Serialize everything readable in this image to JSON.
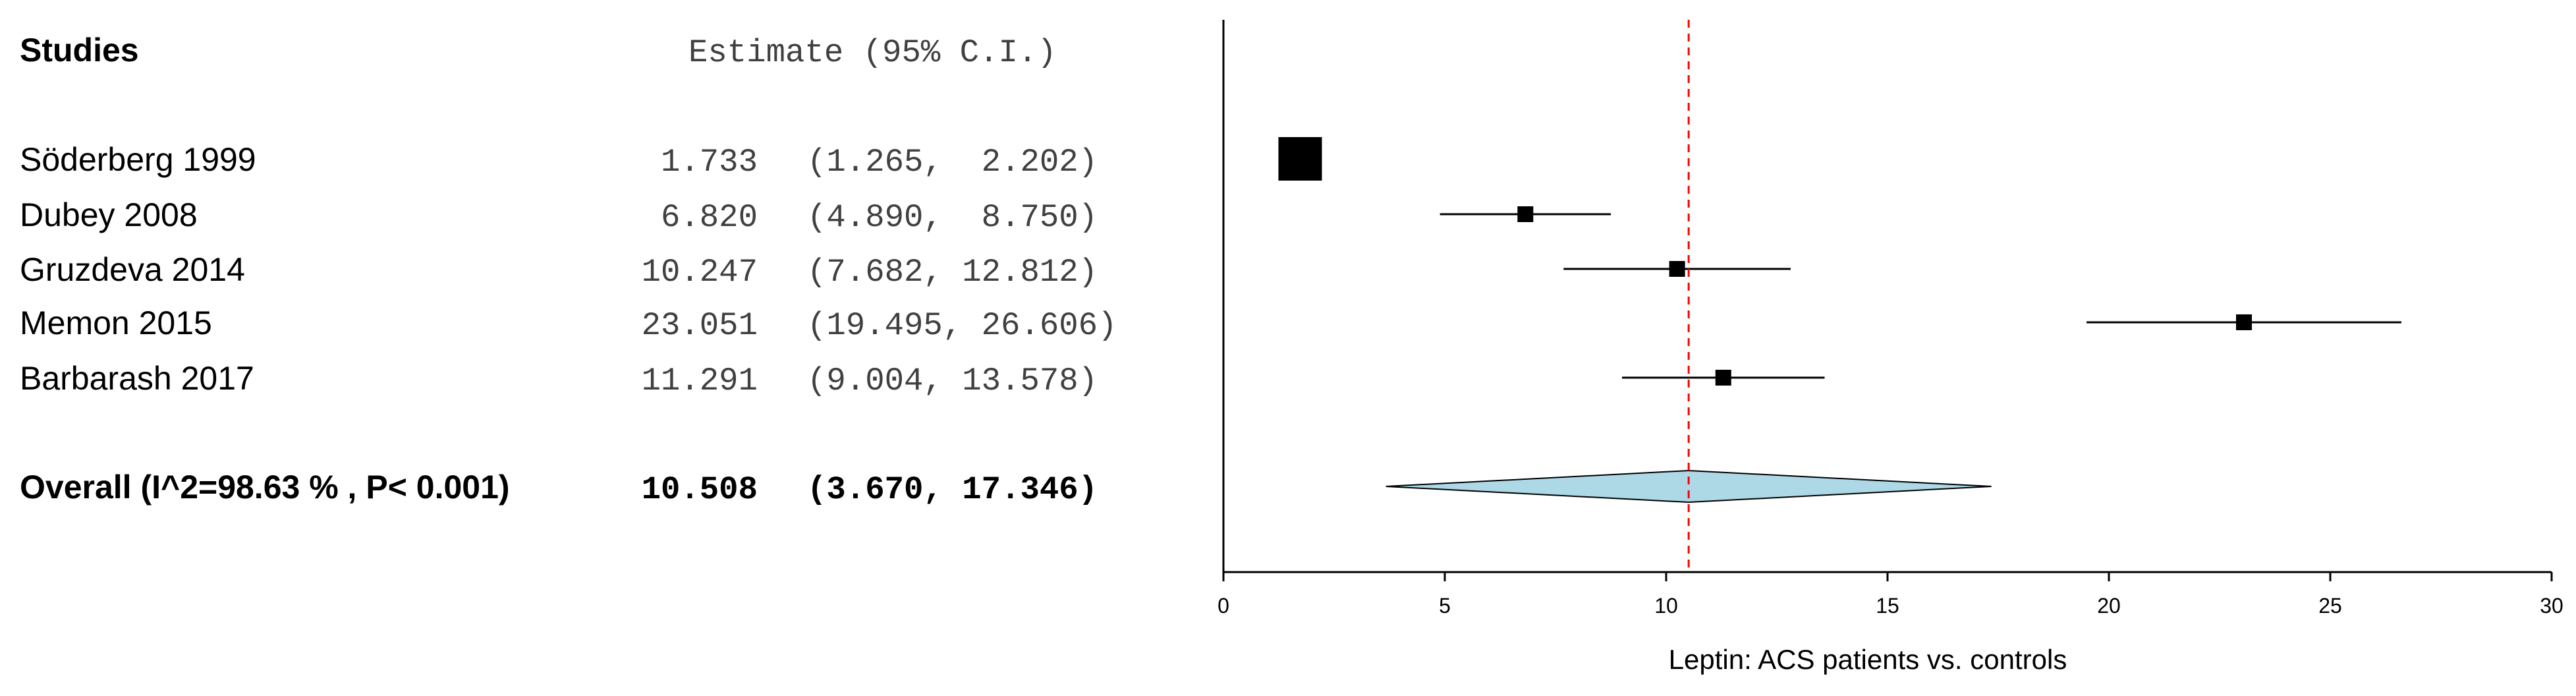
{
  "table": {
    "studies_header": "Studies",
    "estimate_header": "Estimate (95% C.I.)"
  },
  "chart_data": {
    "type": "forest",
    "xlabel": "Leptin: ACS patients vs. controls",
    "xlim": [
      0,
      30
    ],
    "xticks": [
      0,
      5,
      10,
      15,
      20,
      25,
      30
    ],
    "reference_line": 10.508,
    "reference_line_color": "#ff0000",
    "studies": [
      {
        "name": "Söderberg  1999",
        "estimate": 1.733,
        "lower": 1.265,
        "upper": 2.202,
        "estimate_text": "1.733",
        "ci_text": "(1.265,  2.202)",
        "weight": 1.0
      },
      {
        "name": "Dubey 2008",
        "estimate": 6.82,
        "lower": 4.89,
        "upper": 8.75,
        "estimate_text": "6.820",
        "ci_text": "(4.890,  8.750)",
        "weight": 0.45
      },
      {
        "name": "Gruzdeva 2014",
        "estimate": 10.247,
        "lower": 7.682,
        "upper": 12.812,
        "estimate_text": "10.247",
        "ci_text": "(7.682, 12.812)",
        "weight": 0.42
      },
      {
        "name": "Memon 2015",
        "estimate": 23.051,
        "lower": 19.495,
        "upper": 26.606,
        "estimate_text": "23.051",
        "ci_text": "(19.495, 26.606)",
        "weight": 0.36
      },
      {
        "name": "Barbarash  2017",
        "estimate": 11.291,
        "lower": 9.004,
        "upper": 13.578,
        "estimate_text": "11.291",
        "ci_text": "(9.004, 13.578)",
        "weight": 0.42
      }
    ],
    "overall": {
      "label": "Overall (I^2=98.63 % , P< 0.001)",
      "estimate": 10.508,
      "lower": 3.67,
      "upper": 17.346,
      "estimate_text": "10.508",
      "ci_text": "(3.670, 17.346)",
      "diamond_color": "#add8e6"
    }
  }
}
